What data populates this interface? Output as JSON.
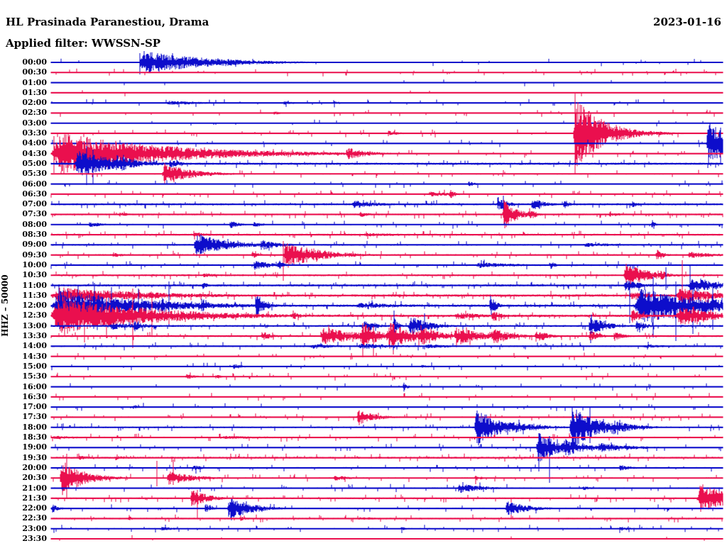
{
  "header": {
    "station_title": "HL Prasinada Paranestiou, Drama",
    "filter_label": "Applied filter: WWSSN-SP",
    "date": "2023-01-16"
  },
  "axis": {
    "left_label": "HHZ – 50000"
  },
  "colors": {
    "even_trace": "#0d0dcb",
    "odd_trace": "#ea0f4e",
    "background": "#ffffff"
  },
  "chart_data": {
    "type": "line",
    "subtype": "helicorder-dayplot",
    "title": "HL Prasinada Paranestiou, Drama",
    "date": "2023-01-16",
    "filter": "WWSSN-SP",
    "y_axis_label": "HHZ – 50000",
    "row_duration_minutes": 30,
    "row_colors_alternate": [
      "#0d0dcb",
      "#ea0f4e"
    ],
    "rows": [
      {
        "t": "00:00",
        "c": "b",
        "n": 0.7,
        "k": 0.03,
        "e": [
          [
            0.13,
            0.11,
            12
          ],
          [
            0.255,
            0.05,
            4
          ]
        ],
        "s": [
          [
            0.132,
            13,
            17
          ]
        ]
      },
      {
        "t": "00:30",
        "c": "r",
        "n": 0.6,
        "k": 0.06,
        "e": []
      },
      {
        "t": "01:00",
        "c": "b",
        "n": 0.55,
        "k": 0.012,
        "e": []
      },
      {
        "t": "01:30",
        "c": "r",
        "n": 0.5,
        "k": 0.006,
        "e": []
      },
      {
        "t": "02:00",
        "c": "b",
        "n": 0.6,
        "k": 0.04,
        "e": [
          [
            0.17,
            0.08,
            2.2
          ],
          [
            0.345,
            0.02,
            2.2
          ],
          [
            0.42,
            0.015,
            2
          ]
        ]
      },
      {
        "t": "02:30",
        "c": "r",
        "n": 0.6,
        "k": 0.04,
        "e": [
          [
            0.33,
            0.015,
            2
          ]
        ]
      },
      {
        "t": "03:00",
        "c": "b",
        "n": 0.55,
        "k": 0.015,
        "e": []
      },
      {
        "t": "03:30",
        "c": "r",
        "n": 0.7,
        "k": 0.05,
        "e": [
          [
            0.5,
            0.02,
            3
          ],
          [
            0.777,
            0.05,
            36
          ]
        ],
        "s": [
          [
            0.78,
            56,
            58
          ],
          [
            0.79,
            40,
            40
          ]
        ]
      },
      {
        "t": "04:00",
        "c": "b",
        "n": 0.6,
        "k": 0.03,
        "e": [
          [
            0.975,
            0.05,
            22
          ]
        ],
        "s": [
          [
            0.997,
            22,
            28
          ]
        ]
      },
      {
        "t": "04:30",
        "c": "r",
        "n": 0.8,
        "k": 0.05,
        "e": [
          [
            0,
            0.18,
            22
          ],
          [
            0.438,
            0.04,
            6
          ]
        ],
        "s": [
          [
            0.004,
            25,
            27
          ],
          [
            0.045,
            18,
            22
          ]
        ]
      },
      {
        "t": "05:00",
        "c": "b",
        "n": 1.1,
        "k": 0.06,
        "e": [
          [
            0.035,
            0.065,
            14
          ],
          [
            0.095,
            0.04,
            9
          ],
          [
            0.175,
            0.025,
            4
          ]
        ],
        "s": [
          [
            0.053,
            25,
            30
          ],
          [
            0.062,
            20,
            28
          ]
        ]
      },
      {
        "t": "05:30",
        "c": "r",
        "n": 0.8,
        "k": 0.05,
        "e": [
          [
            0.165,
            0.05,
            11
          ]
        ]
      },
      {
        "t": "06:00",
        "c": "b",
        "n": 0.6,
        "k": 0.035,
        "e": [
          [
            0.62,
            0.012,
            3
          ]
        ]
      },
      {
        "t": "06:30",
        "c": "r",
        "n": 0.7,
        "k": 0.06,
        "e": [
          [
            0.56,
            0.05,
            2.6
          ],
          [
            0.592,
            0.01,
            5
          ]
        ]
      },
      {
        "t": "07:00",
        "c": "b",
        "n": 1.0,
        "k": 0.07,
        "e": [
          [
            0.447,
            0.055,
            4
          ],
          [
            0.663,
            0.025,
            6
          ],
          [
            0.715,
            0.025,
            6
          ],
          [
            0.762,
            0.012,
            5
          ],
          [
            0.864,
            0.01,
            4
          ]
        ],
        "s": [
          [
            0.673,
            12,
            10
          ]
        ]
      },
      {
        "t": "07:30",
        "c": "r",
        "n": 0.9,
        "k": 0.07,
        "e": [
          [
            0.1,
            0.02,
            2.5
          ],
          [
            0.458,
            0.02,
            3
          ],
          [
            0.672,
            0.022,
            16
          ],
          [
            0.71,
            0.012,
            7
          ],
          [
            0.83,
            0.02,
            3
          ]
        ],
        "s": [
          [
            0.676,
            17,
            20
          ]
        ]
      },
      {
        "t": "08:00",
        "c": "b",
        "n": 0.8,
        "k": 0.06,
        "e": [
          [
            0.055,
            0.025,
            3
          ],
          [
            0.265,
            0.018,
            4
          ],
          [
            0.3,
            0.018,
            3
          ],
          [
            0.893,
            0.006,
            5
          ]
        ]
      },
      {
        "t": "08:30",
        "c": "r",
        "n": 1.0,
        "k": 0.09,
        "e": [
          [
            0.21,
            0.04,
            2.4
          ],
          [
            0.46,
            0.12,
            1.8
          ]
        ]
      },
      {
        "t": "09:00",
        "c": "b",
        "n": 0.9,
        "k": 0.06,
        "e": [
          [
            0.212,
            0.055,
            12
          ],
          [
            0.31,
            0.035,
            6
          ],
          [
            0.79,
            0.08,
            2.2
          ]
        ]
      },
      {
        "t": "09:30",
        "c": "r",
        "n": 0.9,
        "k": 0.06,
        "e": [
          [
            0.09,
            0.018,
            3
          ],
          [
            0.298,
            0.012,
            4
          ],
          [
            0.345,
            0.06,
            14
          ],
          [
            0.9,
            0.013,
            6
          ],
          [
            0.947,
            0.05,
            3.5
          ]
        ],
        "s": [
          [
            0.346,
            20,
            36
          ]
        ]
      },
      {
        "t": "10:00",
        "c": "b",
        "n": 0.9,
        "k": 0.07,
        "e": [
          [
            0.3,
            0.035,
            5
          ],
          [
            0.336,
            0.01,
            6
          ],
          [
            0.63,
            0.08,
            3
          ],
          [
            0.742,
            0.01,
            4
          ]
        ]
      },
      {
        "t": "10:30",
        "c": "r",
        "n": 1.0,
        "k": 0.08,
        "e": [
          [
            0.225,
            0.035,
            2.4
          ],
          [
            0.852,
            0.04,
            13
          ],
          [
            0.906,
            0.018,
            5
          ]
        ]
      },
      {
        "t": "11:00",
        "c": "b",
        "n": 1.1,
        "k": 0.08,
        "e": [
          [
            0.224,
            0.01,
            4
          ],
          [
            0.853,
            0.03,
            6
          ],
          [
            0.948,
            0.055,
            8
          ]
        ],
        "s": [
          [
            0.915,
            26,
            6
          ],
          [
            0.951,
            30,
            8
          ]
        ]
      },
      {
        "t": "11:30",
        "c": "r",
        "n": 1.2,
        "k": 0.09,
        "e": [
          [
            0,
            0.16,
            9
          ],
          [
            0.86,
            0.05,
            4
          ],
          [
            0.93,
            0.07,
            8
          ]
        ],
        "s": [
          [
            0.94,
            50,
            10
          ]
        ]
      },
      {
        "t": "12:00",
        "c": "b",
        "n": 1.2,
        "k": 0.09,
        "e": [
          [
            0,
            0.15,
            16
          ],
          [
            0.163,
            0.02,
            8
          ],
          [
            0.222,
            0.014,
            8
          ],
          [
            0.303,
            0.016,
            12
          ],
          [
            0.45,
            0.12,
            3
          ],
          [
            0.652,
            0.01,
            12
          ],
          [
            0.868,
            0.13,
            18
          ]
        ],
        "s": [
          [
            0.012,
            30,
            25
          ],
          [
            0.04,
            28,
            22
          ],
          [
            0.065,
            32,
            26
          ],
          [
            0.09,
            26,
            20
          ],
          [
            0.13,
            24,
            30
          ],
          [
            0.175,
            34,
            28
          ],
          [
            0.862,
            30,
            25
          ],
          [
            0.896,
            40,
            45
          ],
          [
            0.93,
            34,
            50
          ],
          [
            0.956,
            30,
            40
          ],
          [
            0.985,
            25,
            34
          ]
        ]
      },
      {
        "t": "12:30",
        "c": "r",
        "n": 1.2,
        "k": 0.09,
        "e": [
          [
            0,
            0.16,
            20
          ],
          [
            0.358,
            0.018,
            4
          ],
          [
            0.6,
            0.05,
            4
          ],
          [
            0.655,
            0.018,
            6
          ],
          [
            0.863,
            0.018,
            8
          ],
          [
            0.93,
            0.07,
            10
          ]
        ],
        "s": [
          [
            0.02,
            34,
            30
          ],
          [
            0.05,
            28,
            38
          ],
          [
            0.082,
            26,
            32
          ],
          [
            0.122,
            38,
            46
          ],
          [
            0.15,
            24,
            30
          ]
        ]
      },
      {
        "t": "13:00",
        "c": "b",
        "n": 1.0,
        "k": 0.08,
        "e": [
          [
            0.086,
            0.045,
            4
          ],
          [
            0.122,
            0.025,
            5
          ],
          [
            0.466,
            0.018,
            8
          ],
          [
            0.508,
            0.008,
            10
          ],
          [
            0.532,
            0.035,
            10
          ],
          [
            0.8,
            0.03,
            10
          ],
          [
            0.87,
            0.018,
            6
          ]
        ],
        "s": [
          [
            0.511,
            22,
            18
          ],
          [
            0.556,
            18,
            16
          ],
          [
            0.803,
            8,
            24
          ]
        ]
      },
      {
        "t": "13:30",
        "c": "r",
        "n": 1.0,
        "k": 0.08,
        "e": [
          [
            0.312,
            0.02,
            5
          ],
          [
            0.4,
            0.07,
            9
          ],
          [
            0.462,
            0.025,
            16
          ],
          [
            0.5,
            0.045,
            14
          ],
          [
            0.545,
            0.035,
            12
          ],
          [
            0.6,
            0.045,
            10
          ],
          [
            0.655,
            0.035,
            8
          ],
          [
            0.72,
            0.025,
            6
          ],
          [
            0.8,
            0.018,
            6
          ],
          [
            0.837,
            0.018,
            5
          ]
        ],
        "s": [
          [
            0.464,
            16,
            30
          ],
          [
            0.48,
            14,
            28
          ],
          [
            0.51,
            18,
            26
          ]
        ]
      },
      {
        "t": "14:00",
        "c": "b",
        "n": 0.9,
        "k": 0.07,
        "e": [
          [
            0.385,
            0.05,
            3
          ],
          [
            0.455,
            0.08,
            3
          ],
          [
            0.555,
            0.06,
            2.4
          ],
          [
            0.88,
            0.05,
            2
          ]
        ]
      },
      {
        "t": "14:30",
        "c": "r",
        "n": 0.7,
        "k": 0.05,
        "e": []
      },
      {
        "t": "15:00",
        "c": "b",
        "n": 0.7,
        "k": 0.05,
        "e": [
          [
            0.27,
            0.018,
            3
          ],
          [
            0.55,
            0.015,
            2.2
          ]
        ]
      },
      {
        "t": "15:30",
        "c": "r",
        "n": 0.7,
        "k": 0.055,
        "e": [
          [
            0.2,
            0.018,
            3
          ],
          [
            0.243,
            0.012,
            2.5
          ]
        ]
      },
      {
        "t": "16:00",
        "c": "b",
        "n": 0.6,
        "k": 0.035,
        "e": [
          [
            0.523,
            0.006,
            6
          ]
        ]
      },
      {
        "t": "16:30",
        "c": "r",
        "n": 0.65,
        "k": 0.045,
        "e": []
      },
      {
        "t": "17:00",
        "c": "b",
        "n": 0.7,
        "k": 0.05,
        "e": [
          [
            0.12,
            0.02,
            2
          ]
        ]
      },
      {
        "t": "17:30",
        "c": "r",
        "n": 0.8,
        "k": 0.06,
        "e": [
          [
            0.455,
            0.032,
            8
          ]
        ]
      },
      {
        "t": "18:00",
        "c": "b",
        "n": 0.9,
        "k": 0.07,
        "e": [
          [
            0.63,
            0.045,
            18
          ],
          [
            0.685,
            0.05,
            6
          ],
          [
            0.772,
            0.045,
            22
          ],
          [
            0.832,
            0.04,
            8
          ]
        ],
        "s": [
          [
            0.636,
            20,
            25
          ],
          [
            0.776,
            27,
            20
          ],
          [
            0.802,
            29,
            22
          ]
        ]
      },
      {
        "t": "18:30",
        "c": "r",
        "n": 0.8,
        "k": 0.06,
        "e": [
          [
            0,
            0.07,
            2
          ],
          [
            0.25,
            0.12,
            1.8
          ]
        ]
      },
      {
        "t": "19:00",
        "c": "b",
        "n": 0.8,
        "k": 0.06,
        "e": [
          [
            0.722,
            0.035,
            16
          ],
          [
            0.762,
            0.035,
            10
          ],
          [
            0.812,
            0.06,
            5
          ]
        ],
        "s": [
          [
            0.726,
            20,
            34
          ],
          [
            0.742,
            16,
            50
          ]
        ]
      },
      {
        "t": "19:30",
        "c": "r",
        "n": 1.0,
        "k": 0.08,
        "e": [
          [
            0.04,
            0.03,
            2.4
          ],
          [
            0.095,
            0.02,
            2.4
          ]
        ]
      },
      {
        "t": "20:00",
        "c": "b",
        "n": 0.8,
        "k": 0.06,
        "e": [
          [
            0.21,
            0.018,
            3
          ],
          [
            0.845,
            0.025,
            3
          ]
        ]
      },
      {
        "t": "20:30",
        "c": "r",
        "n": 0.8,
        "k": 0.06,
        "e": [
          [
            0.013,
            0.04,
            18
          ],
          [
            0.172,
            0.045,
            7
          ],
          [
            0.42,
            0.03,
            3
          ],
          [
            0.63,
            0.013,
            3
          ]
        ],
        "s": [
          [
            0.023,
            34,
            30
          ],
          [
            0.157,
            24,
            12
          ],
          [
            0.182,
            26,
            10
          ]
        ]
      },
      {
        "t": "21:00",
        "c": "b",
        "n": 0.8,
        "k": 0.06,
        "e": [
          [
            0.604,
            0.045,
            5
          ],
          [
            0.79,
            0.018,
            2.4
          ]
        ]
      },
      {
        "t": "21:30",
        "c": "r",
        "n": 0.9,
        "k": 0.07,
        "e": [
          [
            0.207,
            0.028,
            10
          ],
          [
            0.962,
            0.06,
            15
          ]
        ],
        "s": [
          [
            0.218,
            12,
            28
          ]
        ]
      },
      {
        "t": "22:00",
        "c": "b",
        "n": 0.8,
        "k": 0.06,
        "e": [
          [
            0,
            0.012,
            5
          ],
          [
            0.228,
            0.012,
            5
          ],
          [
            0.262,
            0.04,
            12
          ],
          [
            0.676,
            0.038,
            8
          ]
        ],
        "s": [
          [
            0.268,
            13,
            17
          ]
        ]
      },
      {
        "t": "22:30",
        "c": "r",
        "n": 0.9,
        "k": 0.07,
        "e": [
          [
            0.114,
            0.008,
            3
          ],
          [
            0.28,
            0.018,
            2.4
          ],
          [
            0.45,
            0.12,
            1.4
          ]
        ]
      },
      {
        "t": "23:00",
        "c": "b",
        "n": 0.8,
        "k": 0.06,
        "e": [
          [
            0.16,
            0.04,
            2
          ],
          [
            0.52,
            0.008,
            2.4
          ],
          [
            0.845,
            0.025,
            2.4
          ]
        ]
      },
      {
        "t": "23:30",
        "c": "r",
        "n": 0.45,
        "k": 0.006,
        "e": []
      }
    ]
  }
}
